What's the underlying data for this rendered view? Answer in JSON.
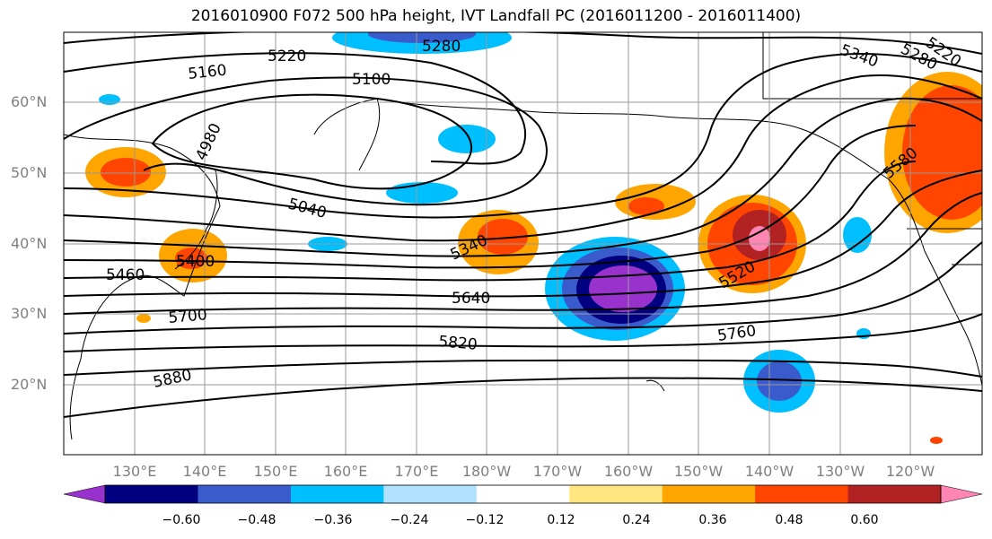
{
  "title": "2016010900 F072 500 hPa height, IVT Landfall PC (2016011200 - 2016011400)",
  "lat_labels": [
    "60°N",
    "50°N",
    "40°N",
    "30°N",
    "20°N"
  ],
  "lon_labels": [
    "130°E",
    "140°E",
    "150°E",
    "160°E",
    "170°E",
    "180°W",
    "170°W",
    "160°W",
    "150°W",
    "140°W",
    "130°W",
    "120°W"
  ],
  "contour_labels": [
    "5220",
    "5280",
    "5160",
    "5100",
    "5340",
    "5280",
    "5220",
    "4980",
    "5040",
    "5580",
    "5340",
    "5400",
    "5460",
    "5520",
    "5640",
    "5700",
    "5820",
    "5760",
    "5880"
  ],
  "colorbar": {
    "ticks": [
      "−0.60",
      "−0.48",
      "−0.36",
      "−0.24",
      "−0.12",
      "0.12",
      "0.24",
      "0.36",
      "0.48",
      "0.60"
    ],
    "colors": [
      "#9932cc",
      "#000080",
      "#3a5bcc",
      "#00bfff",
      "#b0e2ff",
      "#ffffff",
      "#ffe680",
      "#ffa500",
      "#ff4500",
      "#b22222",
      "#ff85b3"
    ]
  },
  "colors": {
    "contour": "#000000",
    "grid": "#999999",
    "coast": "#000000"
  }
}
